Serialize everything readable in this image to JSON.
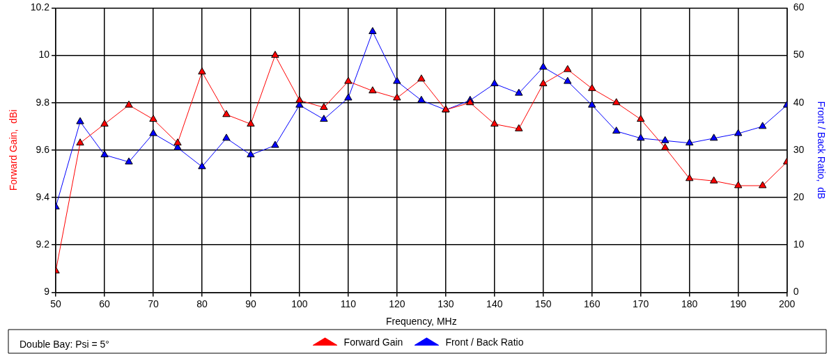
{
  "chart_data": {
    "type": "line",
    "xlabel": "Frequency, MHz",
    "ylabel": "Forward Gain,  dBi",
    "y2label": "Front / Back Ratio,  dB",
    "x": [
      50,
      55,
      60,
      65,
      70,
      75,
      80,
      85,
      90,
      95,
      100,
      105,
      110,
      115,
      120,
      125,
      130,
      135,
      140,
      145,
      150,
      155,
      160,
      165,
      170,
      175,
      180,
      185,
      190,
      195,
      200
    ],
    "series": [
      {
        "name": "Forward Gain",
        "color": "#ff0000",
        "values": [
          9.09,
          9.63,
          9.71,
          9.79,
          9.73,
          9.63,
          9.93,
          9.75,
          9.71,
          10.0,
          9.81,
          9.78,
          9.89,
          9.85,
          9.82,
          9.9,
          9.77,
          9.8,
          9.71,
          9.69,
          9.88,
          9.94,
          9.86,
          9.8,
          9.73,
          9.61,
          9.48,
          9.47,
          9.45,
          9.45,
          9.55
        ]
      },
      {
        "name": "Front / Back Ratio",
        "color": "#0000ff",
        "axis": "y2",
        "values": [
          18,
          36,
          29,
          27.5,
          33.5,
          30.5,
          26.5,
          32.5,
          29,
          31,
          39.5,
          36.5,
          41,
          55,
          44.5,
          40.5,
          38.5,
          40.5,
          44,
          42,
          47.5,
          44.5,
          39.5,
          34,
          32.5,
          32,
          31.5,
          32.5,
          33.5,
          35,
          39.5
        ]
      }
    ],
    "xlim": [
      50,
      200
    ],
    "xticks": [
      50,
      60,
      70,
      80,
      90,
      100,
      110,
      120,
      130,
      140,
      150,
      160,
      170,
      180,
      190,
      200
    ],
    "ylim": [
      9,
      10.2
    ],
    "yticks": [
      9,
      9.2,
      9.4,
      9.6,
      9.8,
      10,
      10.2
    ],
    "y2lim": [
      0,
      60
    ],
    "y2ticks": [
      0,
      10,
      20,
      30,
      40,
      50,
      60
    ],
    "grid": true,
    "legend": "bottom",
    "marker": "triangle",
    "line_style": "solid",
    "annotations": [
      "Double Bay: Psi = 5°"
    ]
  }
}
